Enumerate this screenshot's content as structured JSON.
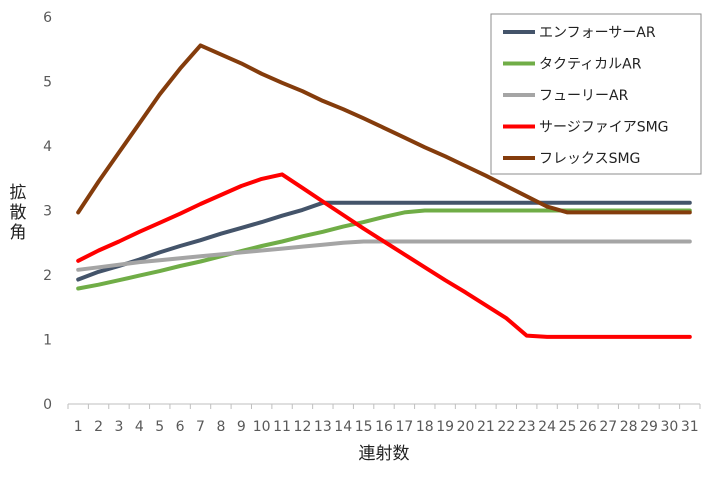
{
  "chart_data": {
    "type": "line",
    "title": "",
    "xlabel": "連射数",
    "ylabel": "拡散角",
    "ylim": [
      0,
      6
    ],
    "yticks": [
      0,
      1,
      2,
      3,
      4,
      5,
      6
    ],
    "x": [
      1,
      2,
      3,
      4,
      5,
      6,
      7,
      8,
      9,
      10,
      11,
      12,
      13,
      14,
      15,
      16,
      17,
      18,
      19,
      20,
      21,
      22,
      23,
      24,
      25,
      26,
      27,
      28,
      29,
      30,
      31
    ],
    "grid": false,
    "legend": "top-right",
    "series": [
      {
        "name": "エンフォーサーAR",
        "color": "#44546a",
        "values": [
          1.93,
          2.05,
          2.14,
          2.24,
          2.35,
          2.45,
          2.54,
          2.64,
          2.73,
          2.82,
          2.92,
          3.01,
          3.12,
          3.12,
          3.12,
          3.12,
          3.12,
          3.12,
          3.12,
          3.12,
          3.12,
          3.12,
          3.12,
          3.12,
          3.12,
          3.12,
          3.12,
          3.12,
          3.12,
          3.12,
          3.12
        ]
      },
      {
        "name": "タクティカルAR",
        "color": "#70ad47",
        "values": [
          1.79,
          1.85,
          1.92,
          1.99,
          2.06,
          2.14,
          2.21,
          2.29,
          2.37,
          2.45,
          2.52,
          2.6,
          2.67,
          2.75,
          2.82,
          2.9,
          2.97,
          3.0,
          3.0,
          3.0,
          3.0,
          3.0,
          3.0,
          3.0,
          3.0,
          3.0,
          3.0,
          3.0,
          3.0,
          3.0,
          3.0
        ]
      },
      {
        "name": "フューリーAR",
        "color": "#a5a5a5",
        "values": [
          2.08,
          2.12,
          2.16,
          2.2,
          2.23,
          2.26,
          2.29,
          2.32,
          2.35,
          2.38,
          2.41,
          2.44,
          2.47,
          2.5,
          2.52,
          2.52,
          2.52,
          2.52,
          2.52,
          2.52,
          2.52,
          2.52,
          2.52,
          2.52,
          2.52,
          2.52,
          2.52,
          2.52,
          2.52,
          2.52,
          2.52
        ]
      },
      {
        "name": "サージファイアSMG",
        "color": "#ff0000",
        "values": [
          2.22,
          2.38,
          2.52,
          2.67,
          2.81,
          2.95,
          3.1,
          3.24,
          3.38,
          3.49,
          3.56,
          3.35,
          3.14,
          2.93,
          2.72,
          2.52,
          2.32,
          2.12,
          1.92,
          1.73,
          1.53,
          1.33,
          1.06,
          1.04,
          1.04,
          1.04,
          1.04,
          1.04,
          1.04,
          1.04,
          1.04
        ]
      },
      {
        "name": "フレックスSMG",
        "color": "#843c0c",
        "values": [
          2.97,
          3.45,
          3.9,
          4.35,
          4.8,
          5.2,
          5.56,
          5.42,
          5.28,
          5.12,
          4.98,
          4.85,
          4.7,
          4.57,
          4.43,
          4.28,
          4.13,
          3.98,
          3.84,
          3.69,
          3.54,
          3.38,
          3.22,
          3.06,
          2.97,
          2.97,
          2.97,
          2.97,
          2.97,
          2.97,
          2.97
        ]
      }
    ]
  }
}
